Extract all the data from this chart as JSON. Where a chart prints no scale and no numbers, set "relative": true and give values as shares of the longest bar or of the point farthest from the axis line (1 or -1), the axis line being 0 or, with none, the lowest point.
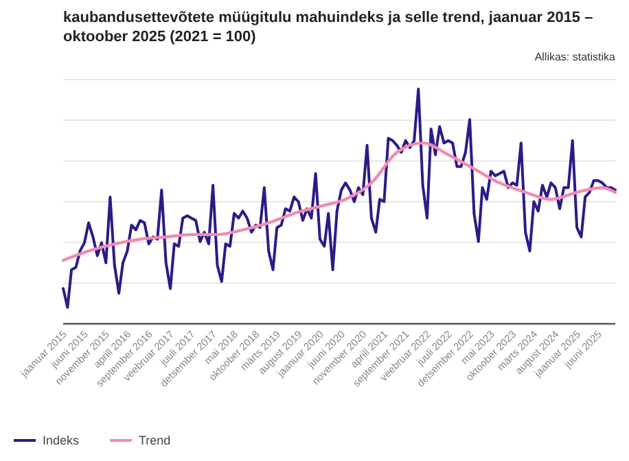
{
  "chart_data": {
    "type": "line",
    "title": "kaubandusettevõtete müügitulu mahuindeks ja selle trend, jaanuar 2015 – oktoober 2025 (2021 = 100)",
    "annotations": [
      "Allikas: statistika"
    ],
    "relative": true,
    "grid": "y",
    "legend": "bottom left",
    "marker": "none",
    "line_style": "solid",
    "xlim": [
      "2015-01",
      "2025-10"
    ],
    "xticks": [
      {
        "value": "2015-01",
        "label": "jaanuar 2015"
      },
      {
        "value": "2015-06",
        "label": "juuni 2015"
      },
      {
        "value": "2015-11",
        "label": "november 2015"
      },
      {
        "value": "2016-04",
        "label": "aprill 2016"
      },
      {
        "value": "2016-09",
        "label": "september 2016"
      },
      {
        "value": "2017-02",
        "label": "veebruar 2017"
      },
      {
        "value": "2017-07",
        "label": "juuli 2017"
      },
      {
        "value": "2017-12",
        "label": "detsember 2017"
      },
      {
        "value": "2018-05",
        "label": "mai 2018"
      },
      {
        "value": "2018-10",
        "label": "oktoober 2018"
      },
      {
        "value": "2019-03",
        "label": "märts 2019"
      },
      {
        "value": "2019-08",
        "label": "august 2019"
      },
      {
        "value": "2020-01",
        "label": "jaanuar 2020"
      },
      {
        "value": "2020-06",
        "label": "juuni 2020"
      },
      {
        "value": "2020-11",
        "label": "november 2020"
      },
      {
        "value": "2021-04",
        "label": "aprill 2021"
      },
      {
        "value": "2021-09",
        "label": "september 2021"
      },
      {
        "value": "2022-02",
        "label": "veebruar 2022"
      },
      {
        "value": "2022-07",
        "label": "juuli 2022"
      },
      {
        "value": "2022-12",
        "label": "detsember 2022"
      },
      {
        "value": "2023-05",
        "label": "mai 2023"
      },
      {
        "value": "2023-10",
        "label": "oktoober 2023"
      },
      {
        "value": "2024-03",
        "label": "märts 2024"
      },
      {
        "value": "2024-08",
        "label": "august 2024"
      },
      {
        "value": "2025-01",
        "label": "jaanuar 2025"
      },
      {
        "value": "2025-06",
        "label": "juuni 2025"
      }
    ],
    "series": [
      {
        "name": "Indeks",
        "color": "#2e1a87",
        "x": [
          "2015-01",
          "2015-02",
          "2015-03",
          "2015-04",
          "2015-05",
          "2015-06",
          "2015-07",
          "2015-08",
          "2015-09",
          "2015-10",
          "2015-11",
          "2015-12",
          "2016-01",
          "2016-02",
          "2016-03",
          "2016-04",
          "2016-05",
          "2016-06",
          "2016-07",
          "2016-08",
          "2016-09",
          "2016-10",
          "2016-11",
          "2016-12",
          "2017-01",
          "2017-02",
          "2017-03",
          "2017-04",
          "2017-05",
          "2017-06",
          "2017-07",
          "2017-08",
          "2017-09",
          "2017-10",
          "2017-11",
          "2017-12",
          "2018-01",
          "2018-02",
          "2018-03",
          "2018-04",
          "2018-05",
          "2018-06",
          "2018-07",
          "2018-08",
          "2018-09",
          "2018-10",
          "2018-11",
          "2018-12",
          "2019-01",
          "2019-02",
          "2019-03",
          "2019-04",
          "2019-05",
          "2019-06",
          "2019-07",
          "2019-08",
          "2019-09",
          "2019-10",
          "2019-11",
          "2019-12",
          "2020-01",
          "2020-02",
          "2020-03",
          "2020-04",
          "2020-05",
          "2020-06",
          "2020-07",
          "2020-08",
          "2020-09",
          "2020-10",
          "2020-11",
          "2020-12",
          "2021-01",
          "2021-02",
          "2021-03",
          "2021-04",
          "2021-05",
          "2021-06",
          "2021-07",
          "2021-08",
          "2021-09",
          "2021-10",
          "2021-11",
          "2021-12",
          "2022-01",
          "2022-02",
          "2022-03",
          "2022-04",
          "2022-05",
          "2022-06",
          "2022-07",
          "2022-08",
          "2022-09",
          "2022-10",
          "2022-11",
          "2022-12",
          "2023-01",
          "2023-02",
          "2023-03",
          "2023-04",
          "2023-05",
          "2023-06",
          "2023-07",
          "2023-08",
          "2023-09",
          "2023-10",
          "2023-11",
          "2023-12",
          "2024-01",
          "2024-02",
          "2024-03",
          "2024-04",
          "2024-05",
          "2024-06",
          "2024-07",
          "2024-08",
          "2024-09",
          "2024-10",
          "2024-11",
          "2024-12",
          "2025-01",
          "2025-02",
          "2025-03",
          "2025-04",
          "2025-05",
          "2025-06",
          "2025-07",
          "2025-08",
          "2025-09",
          "2025-10"
        ],
        "values": [
          0.15,
          0.07,
          0.23,
          0.24,
          0.31,
          0.345,
          0.43,
          0.37,
          0.29,
          0.345,
          0.26,
          0.54,
          0.25,
          0.13,
          0.26,
          0.31,
          0.42,
          0.4,
          0.44,
          0.43,
          0.34,
          0.37,
          0.36,
          0.57,
          0.26,
          0.15,
          0.34,
          0.33,
          0.45,
          0.46,
          0.45,
          0.44,
          0.35,
          0.39,
          0.34,
          0.59,
          0.25,
          0.18,
          0.34,
          0.33,
          0.47,
          0.45,
          0.48,
          0.45,
          0.39,
          0.42,
          0.41,
          0.58,
          0.31,
          0.23,
          0.41,
          0.42,
          0.49,
          0.48,
          0.54,
          0.52,
          0.44,
          0.49,
          0.45,
          0.64,
          0.36,
          0.33,
          0.47,
          0.23,
          0.48,
          0.57,
          0.6,
          0.57,
          0.52,
          0.58,
          0.55,
          0.76,
          0.45,
          0.39,
          0.53,
          0.52,
          0.79,
          0.78,
          0.76,
          0.73,
          0.78,
          0.75,
          0.78,
          1,
          0.59,
          0.45,
          0.83,
          0.72,
          0.84,
          0.77,
          0.78,
          0.77,
          0.67,
          0.67,
          0.73,
          0.87,
          0.47,
          0.35,
          0.58,
          0.53,
          0.65,
          0.63,
          0.64,
          0.65,
          0.58,
          0.6,
          0.59,
          0.77,
          0.39,
          0.31,
          0.52,
          0.48,
          0.59,
          0.54,
          0.6,
          0.58,
          0.49,
          0.58,
          0.58,
          0.78,
          0.41,
          0.37,
          0.54,
          0.56,
          0.61,
          0.61,
          0.6,
          0.58,
          0.58,
          0.57
        ]
      },
      {
        "name": "Trend",
        "color": "#f08cb0",
        "x": [
          "2015-01",
          "2015-07",
          "2016-01",
          "2016-07",
          "2017-01",
          "2017-07",
          "2018-01",
          "2018-07",
          "2019-01",
          "2019-07",
          "2020-01",
          "2020-07",
          "2021-01",
          "2021-07",
          "2022-01",
          "2022-07",
          "2023-01",
          "2023-07",
          "2024-01",
          "2024-07",
          "2025-01",
          "2025-07",
          "2025-10"
        ],
        "values": [
          0.27,
          0.31,
          0.34,
          0.36,
          0.37,
          0.38,
          0.38,
          0.4,
          0.43,
          0.47,
          0.5,
          0.53,
          0.6,
          0.73,
          0.77,
          0.72,
          0.66,
          0.6,
          0.56,
          0.53,
          0.56,
          0.58,
          0.56
        ]
      }
    ]
  }
}
